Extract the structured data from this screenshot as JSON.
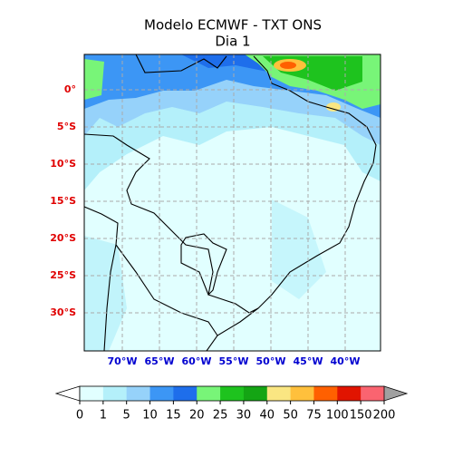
{
  "title": "Modelo ECMWF - TXT ONS",
  "subtitle": "Dia 1",
  "map": {
    "lat_labels": [
      "0°",
      "5°S",
      "10°S",
      "15°S",
      "20°S",
      "25°S",
      "30°S"
    ],
    "lon_labels": [
      "70°W",
      "65°W",
      "60°W",
      "55°W",
      "50°W",
      "45°W",
      "40°W"
    ]
  },
  "colorbar": {
    "ticks": [
      0,
      1,
      5,
      10,
      15,
      20,
      25,
      30,
      40,
      50,
      75,
      100,
      150,
      200
    ],
    "colors": [
      "#e1ffff",
      "#b4f0fa",
      "#96d2fa",
      "#3c96f5",
      "#1e6eeb",
      "#78f578",
      "#1ec31e",
      "#14a514",
      "#fae682",
      "#ffc03c",
      "#ff6000",
      "#e11400",
      "#fa6470"
    ],
    "extend_colors": [
      "#ffffff",
      "#a0a0a0"
    ]
  }
}
